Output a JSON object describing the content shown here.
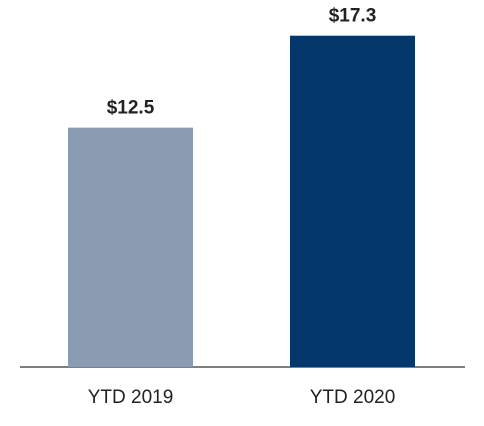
{
  "chart_data": {
    "type": "bar",
    "categories": [
      "YTD 2019",
      "YTD 2020"
    ],
    "values": [
      12.5,
      17.3
    ],
    "value_labels": [
      "$12.5",
      "$17.3"
    ],
    "colors": [
      "#8a9cb0",
      "#04376b"
    ]
  }
}
